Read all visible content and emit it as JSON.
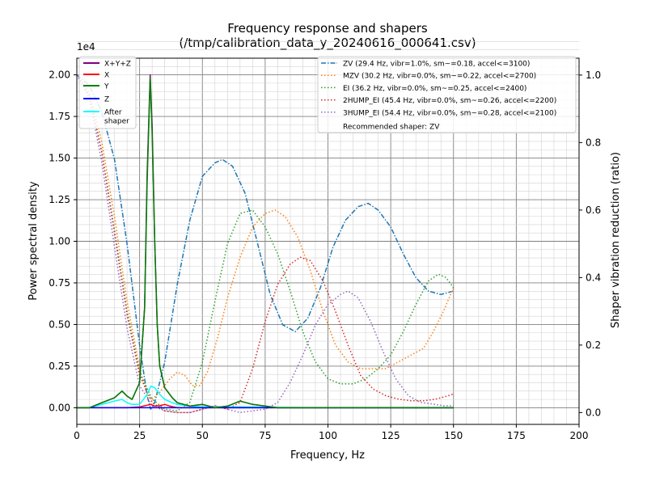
{
  "chart_data": {
    "type": "line",
    "title": "Frequency response and shapers",
    "subtitle": "(/tmp/calibration_data_y_20240616_000641.csv)",
    "xlabel": "Frequency, Hz",
    "ylabel": "Power spectral density",
    "y2label": "Shaper vibration reduction (ratio)",
    "y_offset_label": "1e4",
    "xlim": [
      0,
      200
    ],
    "ylim": [
      -0.1,
      2.1
    ],
    "y2lim": [
      -0.035,
      1.05
    ],
    "x_ticks": [
      0,
      25,
      50,
      75,
      100,
      125,
      150,
      175,
      200
    ],
    "x_tick_labels": [
      "0",
      "25",
      "50",
      "75",
      "100",
      "125",
      "150",
      "175",
      "200"
    ],
    "y_ticks": [
      0,
      0.25,
      0.5,
      0.75,
      1.0,
      1.25,
      1.5,
      1.75,
      2.0
    ],
    "y_tick_labels": [
      "0.00",
      "0.25",
      "0.50",
      "0.75",
      "1.00",
      "1.25",
      "1.50",
      "1.75",
      "2.00"
    ],
    "y2_ticks": [
      0,
      0.2,
      0.4,
      0.6,
      0.8,
      1.0
    ],
    "y2_tick_labels": [
      "0.0",
      "0.2",
      "0.4",
      "0.6",
      "0.8",
      "1.0"
    ],
    "grid": true,
    "legend_left": {
      "placement": "top-left",
      "entries": [
        {
          "name": "X+Y+Z",
          "color": "#800080",
          "style": "solid"
        },
        {
          "name": "X",
          "color": "#ff0000",
          "style": "solid"
        },
        {
          "name": "Y",
          "color": "#008000",
          "style": "solid"
        },
        {
          "name": "Z",
          "color": "#0000ff",
          "style": "solid"
        },
        {
          "name": "After\nshaper",
          "color": "#00ffff",
          "style": "solid"
        }
      ]
    },
    "legend_right": {
      "placement": "top-right",
      "entries": [
        {
          "name": "ZV (29.4 Hz, vibr=1.0%, sm~=0.18, accel<=3100)",
          "color": "#1f77b4",
          "style": "dashdot"
        },
        {
          "name": "MZV (30.2 Hz, vibr=0.0%, sm~=0.22, accel<=2700)",
          "color": "#ff7f0e",
          "style": "dotted"
        },
        {
          "name": "EI (36.2 Hz, vibr=0.0%, sm~=0.25, accel<=2400)",
          "color": "#2ca02c",
          "style": "dotted"
        },
        {
          "name": "2HUMP_EI (45.4 Hz, vibr=0.0%, sm~=0.26, accel<=2200)",
          "color": "#d62728",
          "style": "dotted"
        },
        {
          "name": "3HUMP_EI (54.4 Hz, vibr=0.0%, sm~=0.28, accel<=2100)",
          "color": "#9467bd",
          "style": "dotted"
        }
      ],
      "note": "Recommended shaper: ZV"
    },
    "series": [
      {
        "name": "X+Y+Z",
        "axis": "left",
        "color": "#800080",
        "width": 1.5,
        "points": [
          [
            0,
            0
          ],
          [
            5,
            0
          ],
          [
            10,
            0.03
          ],
          [
            15,
            0.06
          ],
          [
            18,
            0.1
          ],
          [
            20,
            0.07
          ],
          [
            22,
            0.05
          ],
          [
            25,
            0.15
          ],
          [
            27,
            0.6
          ],
          [
            28,
            1.4
          ],
          [
            29.2,
            2.0
          ],
          [
            30,
            1.7
          ],
          [
            31,
            1.0
          ],
          [
            32,
            0.5
          ],
          [
            33,
            0.25
          ],
          [
            35,
            0.12
          ],
          [
            38,
            0.06
          ],
          [
            40,
            0.03
          ],
          [
            45,
            0.01
          ],
          [
            50,
            0.02
          ],
          [
            55,
            0.0
          ],
          [
            60,
            0.01
          ],
          [
            65,
            0.04
          ],
          [
            70,
            0.02
          ],
          [
            75,
            0.01
          ],
          [
            80,
            0.0
          ],
          [
            100,
            0.0
          ],
          [
            150,
            0.0
          ]
        ]
      },
      {
        "name": "X",
        "axis": "left",
        "color": "#ff0000",
        "width": 1.5,
        "points": [
          [
            0,
            0
          ],
          [
            20,
            0
          ],
          [
            25,
            0.005
          ],
          [
            28,
            0.015
          ],
          [
            29.5,
            0.02
          ],
          [
            31,
            0.01
          ],
          [
            33,
            0.012
          ],
          [
            35,
            0.02
          ],
          [
            37,
            0.01
          ],
          [
            40,
            0.0
          ],
          [
            150,
            0.0
          ]
        ]
      },
      {
        "name": "Y",
        "axis": "left",
        "color": "#008000",
        "width": 1.5,
        "points": [
          [
            0,
            0
          ],
          [
            5,
            0
          ],
          [
            10,
            0.03
          ],
          [
            15,
            0.06
          ],
          [
            18,
            0.1
          ],
          [
            20,
            0.07
          ],
          [
            22,
            0.05
          ],
          [
            25,
            0.15
          ],
          [
            27,
            0.6
          ],
          [
            28,
            1.35
          ],
          [
            29.2,
            1.98
          ],
          [
            30,
            1.65
          ],
          [
            31,
            1.0
          ],
          [
            32,
            0.5
          ],
          [
            33,
            0.25
          ],
          [
            35,
            0.12
          ],
          [
            38,
            0.06
          ],
          [
            40,
            0.03
          ],
          [
            45,
            0.01
          ],
          [
            50,
            0.02
          ],
          [
            55,
            0.0
          ],
          [
            60,
            0.01
          ],
          [
            65,
            0.04
          ],
          [
            70,
            0.02
          ],
          [
            75,
            0.01
          ],
          [
            80,
            0.0
          ],
          [
            100,
            0.0
          ],
          [
            150,
            0.0
          ]
        ]
      },
      {
        "name": "Z",
        "axis": "left",
        "color": "#0000ff",
        "width": 1.5,
        "points": [
          [
            0,
            0
          ],
          [
            150,
            0
          ]
        ]
      },
      {
        "name": "After shaper",
        "axis": "left",
        "color": "#00ffff",
        "width": 1.5,
        "points": [
          [
            0,
            0
          ],
          [
            5,
            0
          ],
          [
            10,
            0.02
          ],
          [
            15,
            0.04
          ],
          [
            18,
            0.05
          ],
          [
            20,
            0.03
          ],
          [
            22,
            0.02
          ],
          [
            25,
            0.02
          ],
          [
            28,
            0.08
          ],
          [
            29.5,
            0.13
          ],
          [
            31,
            0.12
          ],
          [
            33,
            0.08
          ],
          [
            35,
            0.05
          ],
          [
            38,
            0.03
          ],
          [
            40,
            0.02
          ],
          [
            45,
            0.01
          ],
          [
            50,
            0.005
          ],
          [
            60,
            0.005
          ],
          [
            70,
            0.005
          ],
          [
            80,
            0.002
          ],
          [
            100,
            0.0
          ],
          [
            150,
            0.0
          ]
        ]
      },
      {
        "name": "ZV",
        "axis": "right",
        "color": "#1f77b4",
        "dash": "6,2,1.5,2",
        "width": 1.5,
        "points": [
          [
            0,
            1.0
          ],
          [
            5,
            0.97
          ],
          [
            10,
            0.89
          ],
          [
            15,
            0.75
          ],
          [
            20,
            0.5
          ],
          [
            25,
            0.2
          ],
          [
            28,
            0.05
          ],
          [
            29.4,
            0.01
          ],
          [
            31,
            0.03
          ],
          [
            35,
            0.15
          ],
          [
            40,
            0.38
          ],
          [
            45,
            0.57
          ],
          [
            50,
            0.7
          ],
          [
            55,
            0.74
          ],
          [
            58,
            0.75
          ],
          [
            62,
            0.73
          ],
          [
            67,
            0.65
          ],
          [
            72,
            0.5
          ],
          [
            77,
            0.35
          ],
          [
            82,
            0.26
          ],
          [
            87,
            0.24
          ],
          [
            92,
            0.28
          ],
          [
            97,
            0.37
          ],
          [
            102,
            0.49
          ],
          [
            107,
            0.57
          ],
          [
            112,
            0.61
          ],
          [
            116,
            0.62
          ],
          [
            120,
            0.6
          ],
          [
            125,
            0.55
          ],
          [
            130,
            0.47
          ],
          [
            135,
            0.4
          ],
          [
            140,
            0.36
          ],
          [
            145,
            0.35
          ],
          [
            150,
            0.36
          ]
        ]
      },
      {
        "name": "MZV",
        "axis": "right",
        "color": "#ff7f0e",
        "dash": "1.5,2.5",
        "width": 1.5,
        "points": [
          [
            0,
            1.0
          ],
          [
            5,
            0.95
          ],
          [
            10,
            0.8
          ],
          [
            15,
            0.58
          ],
          [
            20,
            0.33
          ],
          [
            25,
            0.13
          ],
          [
            28,
            0.05
          ],
          [
            30,
            0.04
          ],
          [
            33,
            0.06
          ],
          [
            37,
            0.1
          ],
          [
            40,
            0.12
          ],
          [
            43,
            0.11
          ],
          [
            46,
            0.08
          ],
          [
            49,
            0.08
          ],
          [
            52,
            0.12
          ],
          [
            56,
            0.22
          ],
          [
            60,
            0.34
          ],
          [
            65,
            0.46
          ],
          [
            70,
            0.55
          ],
          [
            75,
            0.59
          ],
          [
            79,
            0.6
          ],
          [
            83,
            0.58
          ],
          [
            88,
            0.52
          ],
          [
            93,
            0.42
          ],
          [
            98,
            0.3
          ],
          [
            103,
            0.2
          ],
          [
            108,
            0.15
          ],
          [
            113,
            0.13
          ],
          [
            118,
            0.13
          ],
          [
            123,
            0.13
          ],
          [
            128,
            0.15
          ],
          [
            133,
            0.17
          ],
          [
            138,
            0.19
          ],
          [
            142,
            0.24
          ],
          [
            146,
            0.3
          ],
          [
            150,
            0.37
          ]
        ]
      },
      {
        "name": "EI",
        "axis": "right",
        "color": "#2ca02c",
        "dash": "1.5,2.5",
        "width": 1.5,
        "points": [
          [
            0,
            1.0
          ],
          [
            5,
            0.94
          ],
          [
            10,
            0.77
          ],
          [
            15,
            0.54
          ],
          [
            20,
            0.3
          ],
          [
            25,
            0.12
          ],
          [
            30,
            0.04
          ],
          [
            35,
            0.01
          ],
          [
            40,
            0.005
          ],
          [
            45,
            0.03
          ],
          [
            50,
            0.15
          ],
          [
            55,
            0.33
          ],
          [
            60,
            0.5
          ],
          [
            65,
            0.59
          ],
          [
            70,
            0.6
          ],
          [
            75,
            0.55
          ],
          [
            80,
            0.47
          ],
          [
            85,
            0.36
          ],
          [
            90,
            0.24
          ],
          [
            95,
            0.15
          ],
          [
            100,
            0.1
          ],
          [
            105,
            0.085
          ],
          [
            110,
            0.085
          ],
          [
            115,
            0.1
          ],
          [
            120,
            0.13
          ],
          [
            125,
            0.17
          ],
          [
            130,
            0.24
          ],
          [
            135,
            0.32
          ],
          [
            140,
            0.39
          ],
          [
            144,
            0.41
          ],
          [
            147,
            0.4
          ],
          [
            150,
            0.37
          ]
        ]
      },
      {
        "name": "2HUMP_EI",
        "axis": "right",
        "color": "#d62728",
        "dash": "1.5,2.5",
        "width": 1.5,
        "points": [
          [
            0,
            1.0
          ],
          [
            5,
            0.94
          ],
          [
            10,
            0.77
          ],
          [
            15,
            0.53
          ],
          [
            20,
            0.29
          ],
          [
            25,
            0.11
          ],
          [
            30,
            0.03
          ],
          [
            35,
            0.005
          ],
          [
            40,
            0.0
          ],
          [
            45,
            0.0
          ],
          [
            50,
            0.01
          ],
          [
            55,
            0.02
          ],
          [
            60,
            0.01
          ],
          [
            65,
            0.03
          ],
          [
            70,
            0.13
          ],
          [
            75,
            0.27
          ],
          [
            80,
            0.38
          ],
          [
            85,
            0.44
          ],
          [
            89,
            0.46
          ],
          [
            93,
            0.45
          ],
          [
            98,
            0.39
          ],
          [
            103,
            0.3
          ],
          [
            108,
            0.2
          ],
          [
            113,
            0.11
          ],
          [
            118,
            0.07
          ],
          [
            123,
            0.05
          ],
          [
            128,
            0.04
          ],
          [
            133,
            0.035
          ],
          [
            138,
            0.035
          ],
          [
            143,
            0.04
          ],
          [
            148,
            0.05
          ],
          [
            150,
            0.055
          ]
        ]
      },
      {
        "name": "3HUMP_EI",
        "axis": "right",
        "color": "#9467bd",
        "dash": "1.5,2.5",
        "width": 1.5,
        "points": [
          [
            0,
            1.0
          ],
          [
            5,
            0.93
          ],
          [
            10,
            0.74
          ],
          [
            15,
            0.49
          ],
          [
            20,
            0.25
          ],
          [
            25,
            0.08
          ],
          [
            30,
            0.02
          ],
          [
            35,
            0.005
          ],
          [
            40,
            0.0
          ],
          [
            45,
            0.0
          ],
          [
            50,
            0.01
          ],
          [
            55,
            0.02
          ],
          [
            60,
            0.01
          ],
          [
            65,
            0.0
          ],
          [
            70,
            0.005
          ],
          [
            75,
            0.01
          ],
          [
            80,
            0.03
          ],
          [
            85,
            0.09
          ],
          [
            90,
            0.17
          ],
          [
            95,
            0.26
          ],
          [
            100,
            0.32
          ],
          [
            105,
            0.35
          ],
          [
            108,
            0.36
          ],
          [
            112,
            0.34
          ],
          [
            117,
            0.27
          ],
          [
            122,
            0.18
          ],
          [
            127,
            0.1
          ],
          [
            132,
            0.05
          ],
          [
            137,
            0.03
          ],
          [
            142,
            0.025
          ],
          [
            146,
            0.02
          ],
          [
            150,
            0.02
          ]
        ]
      }
    ]
  }
}
